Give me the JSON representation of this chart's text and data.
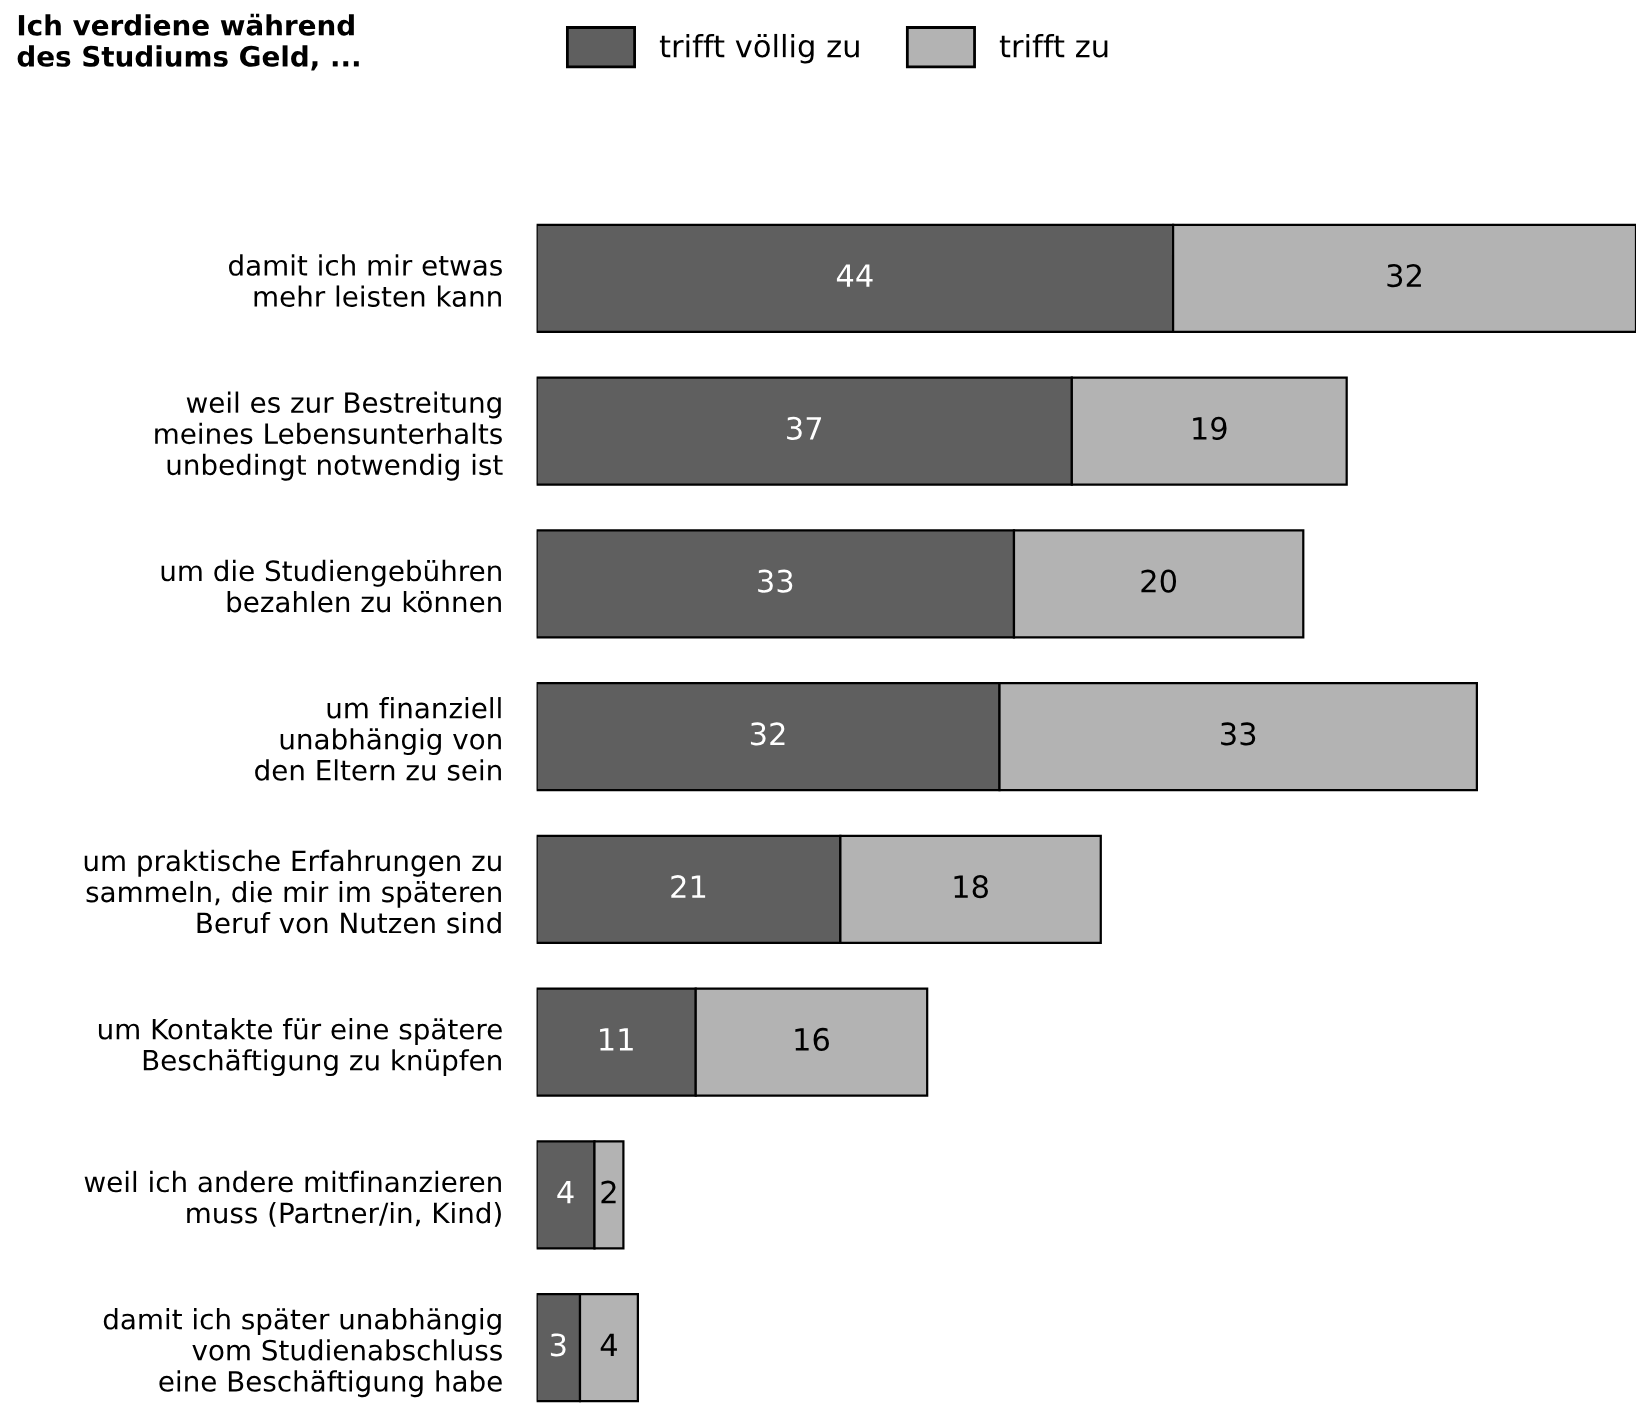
{
  "chart_data": {
    "type": "bar",
    "orientation": "horizontal",
    "stacked": true,
    "data_labels": true,
    "legend": "top",
    "grid": false,
    "tick_labels": "y",
    "title": "Ich verdiene während\ndes Studiums Geld, ...",
    "categories": [
      "damit ich mir etwas\nmehr leisten kann",
      "weil es zur Bestreitung\nmeines Lebensunterhalts\nunbedingt notwendig ist",
      "um die Studiengebühren\nbezahlen zu können",
      "um finanziell\nunabhängig von\nden Eltern zu sein",
      "um praktische Erfahrungen zu\nsammeln, die mir im späteren\nBeruf von Nutzen sind",
      "um Kontakte für eine spätere\nBeschäftigung zu knüpfen",
      "weil ich andere mitfinanzieren\nmuss (Partner/in, Kind)",
      "damit ich später unabhängig\nvom Studienabschluss\neine Beschäftigung habe"
    ],
    "series": [
      {
        "name": "trifft völlig zu",
        "color": "#5f5f5f",
        "values": [
          44,
          37,
          33,
          32,
          21,
          11,
          4,
          3
        ]
      },
      {
        "name": "trifft zu",
        "color": "#b3b3b3",
        "values": [
          32,
          19,
          20,
          33,
          18,
          16,
          2,
          4
        ]
      }
    ]
  }
}
